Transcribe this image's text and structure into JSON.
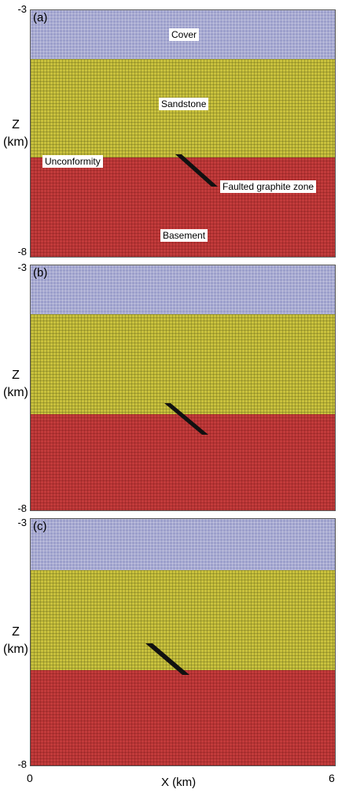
{
  "panels": [
    {
      "letter": "(a)",
      "y_top": "-3",
      "y_bottom": "-8",
      "labels": {
        "cover": "Cover",
        "sandstone": "Sandstone",
        "unconformity": "Unconformity",
        "fault": "Faulted graphite zone",
        "basement": "Basement"
      }
    },
    {
      "letter": "(b)",
      "y_top": "-3",
      "y_bottom": "-8"
    },
    {
      "letter": "(c)",
      "y_top": "-3",
      "y_bottom": "-8"
    }
  ],
  "y_axis": {
    "label_line1": "Z",
    "label_line2": "(km)"
  },
  "x_axis": {
    "label": "X (km)",
    "tick_min": "0",
    "tick_max": "6"
  },
  "colors": {
    "cover": "#9c9fcb",
    "sandstone": "#c9c13d",
    "basement": "#c23b3b",
    "fault": "#111111"
  }
}
